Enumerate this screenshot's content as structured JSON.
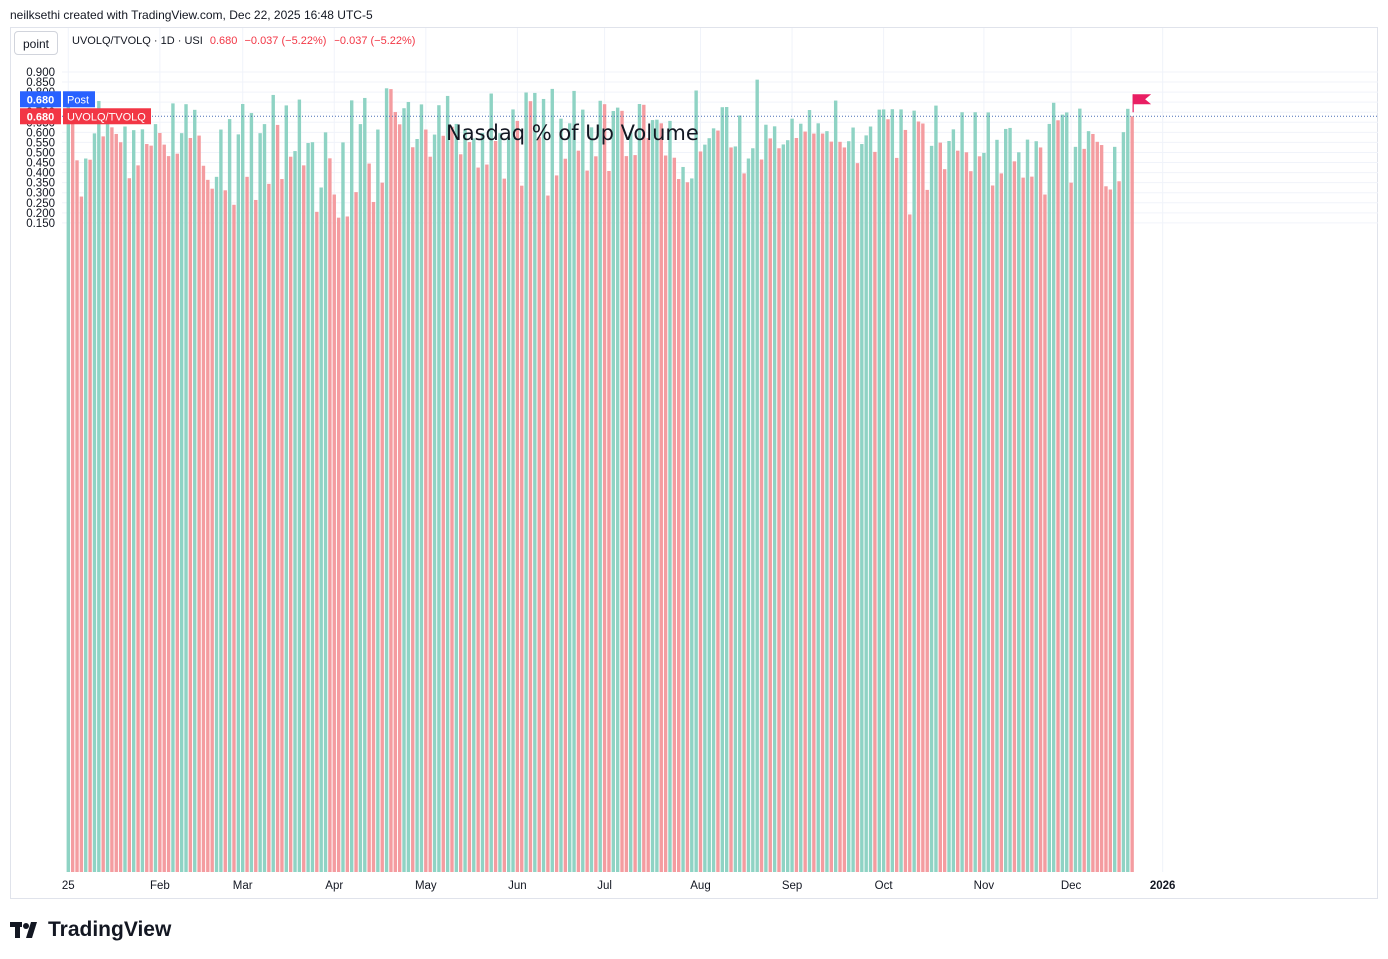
{
  "header": {
    "credit": "neilksethi created with TradingView.com, Dec 22, 2025 16:48 UTC-5",
    "point_button": "point",
    "symbol": "UVOLQ/TVOLQ · 1D · USI",
    "last": "0.680",
    "change": "−0.037 (−5.22%)",
    "change2": "−0.037 (−5.22%)"
  },
  "brand": {
    "name": "TradingView"
  },
  "colors": {
    "up": "#8fd3c4",
    "down": "#f49ca0",
    "grid": "#f0f3fa",
    "accent_blue": "#2962ff",
    "accent_red": "#f23645"
  },
  "chart_data": {
    "type": "bar",
    "title": "Nasdaq % of Up Volume",
    "ylim": [
      0.105,
      0.925
    ],
    "yticks": [
      "0.900",
      "0.850",
      "0.800",
      "0.750",
      "0.700",
      "0.650",
      "0.600",
      "0.550",
      "0.500",
      "0.450",
      "0.400",
      "0.350",
      "0.300",
      "0.250",
      "0.200",
      "0.150"
    ],
    "xticks": [
      {
        "label": "25",
        "index": 0
      },
      {
        "label": "Feb",
        "index": 21
      },
      {
        "label": "Mar",
        "index": 40
      },
      {
        "label": "Apr",
        "index": 61
      },
      {
        "label": "May",
        "index": 82
      },
      {
        "label": "Jun",
        "index": 103
      },
      {
        "label": "Jul",
        "index": 123
      },
      {
        "label": "Aug",
        "index": 145
      },
      {
        "label": "Sep",
        "index": 166
      },
      {
        "label": "Oct",
        "index": 187
      },
      {
        "label": "Nov",
        "index": 210
      },
      {
        "label": "Dec",
        "index": 230
      },
      {
        "label": "2026",
        "index": 251
      }
    ],
    "price_labels": [
      {
        "value": "0.680",
        "text": "Post"
      },
      {
        "value": "0.680",
        "text": "UVOLQ/TVOLQ"
      }
    ],
    "values": [
      0.76,
      0.716,
      0.461,
      0.281,
      0.47,
      0.464,
      0.595,
      0.756,
      0.58,
      0.652,
      0.625,
      0.592,
      0.551,
      0.629,
      0.372,
      0.611,
      0.436,
      0.615,
      0.542,
      0.534,
      0.641,
      0.597,
      0.539,
      0.482,
      0.744,
      0.494,
      0.596,
      0.74,
      0.572,
      0.712,
      0.584,
      0.434,
      0.364,
      0.32,
      0.379,
      0.614,
      0.312,
      0.666,
      0.24,
      0.59,
      0.741,
      0.379,
      0.696,
      0.264,
      0.596,
      0.641,
      0.344,
      0.786,
      0.637,
      0.368,
      0.734,
      0.479,
      0.507,
      0.763,
      0.436,
      0.547,
      0.551,
      0.205,
      0.326,
      0.6,
      0.471,
      0.291,
      0.176,
      0.55,
      0.182,
      0.759,
      0.303,
      0.641,
      0.771,
      0.445,
      0.254,
      0.614,
      0.35,
      0.819,
      0.815,
      0.701,
      0.64,
      0.72,
      0.751,
      0.526,
      0.567,
      0.739,
      0.614,
      0.479,
      0.589,
      0.735,
      0.583,
      0.781,
      0.628,
      0.642,
      0.491,
      0.614,
      0.552,
      0.57,
      0.425,
      0.597,
      0.44,
      0.793,
      0.557,
      0.596,
      0.37,
      0.572,
      0.714,
      0.657,
      0.335,
      0.798,
      0.755,
      0.796,
      0.576,
      0.766,
      0.286,
      0.816,
      0.386,
      0.668,
      0.469,
      0.645,
      0.806,
      0.509,
      0.713,
      0.41,
      0.625,
      0.481,
      0.757,
      0.74,
      0.408,
      0.706,
      0.723,
      0.707,
      0.482,
      0.599,
      0.487,
      0.741,
      0.737,
      0.572,
      0.661,
      0.663,
      0.645,
      0.485,
      0.657,
      0.474,
      0.368,
      0.428,
      0.352,
      0.371,
      0.808,
      0.505,
      0.539,
      0.571,
      0.62,
      0.609,
      0.725,
      0.726,
      0.525,
      0.53,
      0.684,
      0.396,
      0.47,
      0.521,
      0.862,
      0.465,
      0.638,
      0.57,
      0.63,
      0.521,
      0.54,
      0.561,
      0.668,
      0.572,
      0.643,
      0.604,
      0.711,
      0.594,
      0.645,
      0.594,
      0.606,
      0.554,
      0.758,
      0.553,
      0.525,
      0.556,
      0.624,
      0.447,
      0.542,
      0.585,
      0.629,
      0.503,
      0.713,
      0.714,
      0.665,
      0.715,
      0.473,
      0.714,
      0.612,
      0.192,
      0.708,
      0.654,
      0.644,
      0.314,
      0.533,
      0.733,
      0.549,
      0.417,
      0.557,
      0.615,
      0.509,
      0.7,
      0.501,
      0.407,
      0.7,
      0.481,
      0.498,
      0.699,
      0.336,
      0.563,
      0.396,
      0.617,
      0.622,
      0.456,
      0.501,
      0.375,
      0.564,
      0.38,
      0.556,
      0.525,
      0.291,
      0.642,
      0.747,
      0.66,
      0.688,
      0.699,
      0.35,
      0.528,
      0.718,
      0.518,
      0.606,
      0.592,
      0.553,
      0.537,
      0.332,
      0.316,
      0.528,
      0.357,
      0.601,
      0.717,
      0.68
    ]
  }
}
